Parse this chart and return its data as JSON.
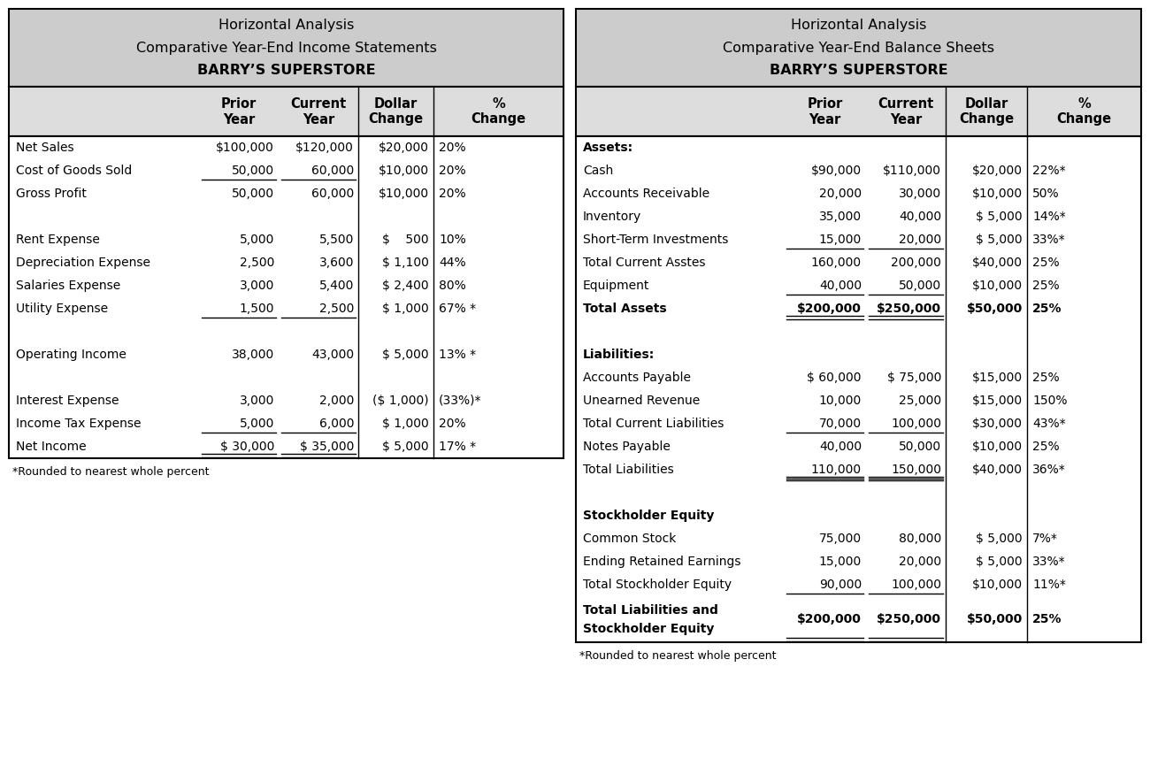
{
  "left_title": [
    "BARRY’S SUPERSTORE",
    "Comparative Year-End Income Statements",
    "Horizontal Analysis"
  ],
  "right_title": [
    "BARRY’S SUPERSTORE",
    "Comparative Year-End Balance Sheets",
    "Horizontal Analysis"
  ],
  "col_headers": [
    "Prior\nYear",
    "Current\nYear",
    "Dollar\nChange",
    "%\nChange"
  ],
  "left_rows": [
    {
      "label": "Net Sales",
      "prior": "$100,000",
      "current": "$120,000",
      "dollar": "$20,000",
      "pct": "20%",
      "bold": false,
      "ul_p": false,
      "ul_c": false,
      "dbl_p": false,
      "dbl_c": false
    },
    {
      "label": "Cost of Goods Sold",
      "prior": "50,000",
      "current": "60,000",
      "dollar": "$10,000",
      "pct": "20%",
      "bold": false,
      "ul_p": true,
      "ul_c": true,
      "dbl_p": false,
      "dbl_c": false
    },
    {
      "label": "Gross Profit",
      "prior": "50,000",
      "current": "60,000",
      "dollar": "$10,000",
      "pct": "20%",
      "bold": false,
      "ul_p": false,
      "ul_c": false,
      "dbl_p": false,
      "dbl_c": false
    },
    {
      "label": "",
      "prior": "",
      "current": "",
      "dollar": "",
      "pct": "",
      "bold": false,
      "ul_p": false,
      "ul_c": false,
      "dbl_p": false,
      "dbl_c": false
    },
    {
      "label": "Rent Expense",
      "prior": "5,000",
      "current": "5,500",
      "dollar": "$    500",
      "pct": "10%",
      "bold": false,
      "ul_p": false,
      "ul_c": false,
      "dbl_p": false,
      "dbl_c": false
    },
    {
      "label": "Depreciation Expense",
      "prior": "2,500",
      "current": "3,600",
      "dollar": "$ 1,100",
      "pct": "44%",
      "bold": false,
      "ul_p": false,
      "ul_c": false,
      "dbl_p": false,
      "dbl_c": false
    },
    {
      "label": "Salaries Expense",
      "prior": "3,000",
      "current": "5,400",
      "dollar": "$ 2,400",
      "pct": "80%",
      "bold": false,
      "ul_p": false,
      "ul_c": false,
      "dbl_p": false,
      "dbl_c": false
    },
    {
      "label": "Utility Expense",
      "prior": "1,500",
      "current": "2,500",
      "dollar": "$ 1,000",
      "pct": "67% *",
      "bold": false,
      "ul_p": true,
      "ul_c": true,
      "dbl_p": false,
      "dbl_c": false
    },
    {
      "label": "",
      "prior": "",
      "current": "",
      "dollar": "",
      "pct": "",
      "bold": false,
      "ul_p": false,
      "ul_c": false,
      "dbl_p": false,
      "dbl_c": false
    },
    {
      "label": "Operating Income",
      "prior": "38,000",
      "current": "43,000",
      "dollar": "$ 5,000",
      "pct": "13% *",
      "bold": false,
      "ul_p": false,
      "ul_c": false,
      "dbl_p": false,
      "dbl_c": false
    },
    {
      "label": "",
      "prior": "",
      "current": "",
      "dollar": "",
      "pct": "",
      "bold": false,
      "ul_p": false,
      "ul_c": false,
      "dbl_p": false,
      "dbl_c": false
    },
    {
      "label": "Interest Expense",
      "prior": "3,000",
      "current": "2,000",
      "dollar": "($ 1,000)",
      "pct": "(33%)*",
      "bold": false,
      "ul_p": false,
      "ul_c": false,
      "dbl_p": false,
      "dbl_c": false
    },
    {
      "label": "Income Tax Expense",
      "prior": "5,000",
      "current": "6,000",
      "dollar": "$ 1,000",
      "pct": "20%",
      "bold": false,
      "ul_p": true,
      "ul_c": true,
      "dbl_p": false,
      "dbl_c": false
    },
    {
      "label": "Net Income",
      "prior": "$ 30,000",
      "current": "$ 35,000",
      "dollar": "$ 5,000",
      "pct": "17% *",
      "bold": false,
      "ul_p": false,
      "ul_c": false,
      "dbl_p": true,
      "dbl_c": true
    }
  ],
  "right_rows": [
    {
      "label": "Assets:",
      "prior": "",
      "current": "",
      "dollar": "",
      "pct": "",
      "bold": true,
      "ul_p": false,
      "ul_c": false,
      "dbl_p": false,
      "dbl_c": false
    },
    {
      "label": "Cash",
      "prior": "$90,000",
      "current": "$110,000",
      "dollar": "$20,000",
      "pct": "22%*",
      "bold": false,
      "ul_p": false,
      "ul_c": false,
      "dbl_p": false,
      "dbl_c": false
    },
    {
      "label": "Accounts Receivable",
      "prior": "20,000",
      "current": "30,000",
      "dollar": "$10,000",
      "pct": "50%",
      "bold": false,
      "ul_p": false,
      "ul_c": false,
      "dbl_p": false,
      "dbl_c": false
    },
    {
      "label": "Inventory",
      "prior": "35,000",
      "current": "40,000",
      "dollar": "$ 5,000",
      "pct": "14%*",
      "bold": false,
      "ul_p": false,
      "ul_c": false,
      "dbl_p": false,
      "dbl_c": false
    },
    {
      "label": "Short-Term Investments",
      "prior": "15,000",
      "current": "20,000",
      "dollar": "$ 5,000",
      "pct": "33%*",
      "bold": false,
      "ul_p": true,
      "ul_c": true,
      "dbl_p": false,
      "dbl_c": false
    },
    {
      "label": "Total Current Asstes",
      "prior": "160,000",
      "current": "200,000",
      "dollar": "$40,000",
      "pct": "25%",
      "bold": false,
      "ul_p": false,
      "ul_c": false,
      "dbl_p": false,
      "dbl_c": false
    },
    {
      "label": "Equipment",
      "prior": "40,000",
      "current": "50,000",
      "dollar": "$10,000",
      "pct": "25%",
      "bold": false,
      "ul_p": true,
      "ul_c": true,
      "dbl_p": false,
      "dbl_c": false
    },
    {
      "label": "Total Assets",
      "prior": "$200,000",
      "current": "$250,000",
      "dollar": "$50,000",
      "pct": "25%",
      "bold": true,
      "ul_p": false,
      "ul_c": false,
      "dbl_p": true,
      "dbl_c": true
    },
    {
      "label": "",
      "prior": "",
      "current": "",
      "dollar": "",
      "pct": "",
      "bold": false,
      "ul_p": false,
      "ul_c": false,
      "dbl_p": false,
      "dbl_c": false
    },
    {
      "label": "Liabilities:",
      "prior": "",
      "current": "",
      "dollar": "",
      "pct": "",
      "bold": true,
      "ul_p": false,
      "ul_c": false,
      "dbl_p": false,
      "dbl_c": false
    },
    {
      "label": "Accounts Payable",
      "prior": "$ 60,000",
      "current": "$ 75,000",
      "dollar": "$15,000",
      "pct": "25%",
      "bold": false,
      "ul_p": false,
      "ul_c": false,
      "dbl_p": false,
      "dbl_c": false
    },
    {
      "label": "Unearned Revenue",
      "prior": "10,000",
      "current": "25,000",
      "dollar": "$15,000",
      "pct": "150%",
      "bold": false,
      "ul_p": false,
      "ul_c": false,
      "dbl_p": false,
      "dbl_c": false
    },
    {
      "label": "Total Current Liabilities",
      "prior": "70,000",
      "current": "100,000",
      "dollar": "$30,000",
      "pct": "43%*",
      "bold": false,
      "ul_p": true,
      "ul_c": true,
      "dbl_p": false,
      "dbl_c": false
    },
    {
      "label": "Notes Payable",
      "prior": "40,000",
      "current": "50,000",
      "dollar": "$10,000",
      "pct": "25%",
      "bold": false,
      "ul_p": false,
      "ul_c": false,
      "dbl_p": false,
      "dbl_c": false
    },
    {
      "label": "Total Liabilities",
      "prior": "110,000",
      "current": "150,000",
      "dollar": "$40,000",
      "pct": "36%*",
      "bold": false,
      "ul_p": true,
      "ul_c": true,
      "dbl_p": true,
      "dbl_c": true
    },
    {
      "label": "",
      "prior": "",
      "current": "",
      "dollar": "",
      "pct": "",
      "bold": false,
      "ul_p": false,
      "ul_c": false,
      "dbl_p": false,
      "dbl_c": false
    },
    {
      "label": "Stockholder Equity",
      "prior": "",
      "current": "",
      "dollar": "",
      "pct": "",
      "bold": true,
      "ul_p": false,
      "ul_c": false,
      "dbl_p": false,
      "dbl_c": false
    },
    {
      "label": "Common Stock",
      "prior": "75,000",
      "current": "80,000",
      "dollar": "$ 5,000",
      "pct": "7%*",
      "bold": false,
      "ul_p": false,
      "ul_c": false,
      "dbl_p": false,
      "dbl_c": false
    },
    {
      "label": "Ending Retained Earnings",
      "prior": "15,000",
      "current": "20,000",
      "dollar": "$ 5,000",
      "pct": "33%*",
      "bold": false,
      "ul_p": false,
      "ul_c": false,
      "dbl_p": false,
      "dbl_c": false
    },
    {
      "label": "Total Stockholder Equity",
      "prior": "90,000",
      "current": "100,000",
      "dollar": "$10,000",
      "pct": "11%*",
      "bold": false,
      "ul_p": true,
      "ul_c": true,
      "dbl_p": false,
      "dbl_c": false
    },
    {
      "label": "Total Liabilities and\nStockholder Equity",
      "prior": "$200,000",
      "current": "$250,000",
      "dollar": "$50,000",
      "pct": "25%",
      "bold": true,
      "ul_p": false,
      "ul_c": false,
      "dbl_p": true,
      "dbl_c": true
    }
  ],
  "footer": "*Rounded to nearest whole percent",
  "header_bg": "#cccccc",
  "col_header_bg": "#dddddd",
  "border_color": "#000000",
  "font_size": 10.0,
  "header_font_size": 11.5,
  "col_header_font_size": 10.5
}
